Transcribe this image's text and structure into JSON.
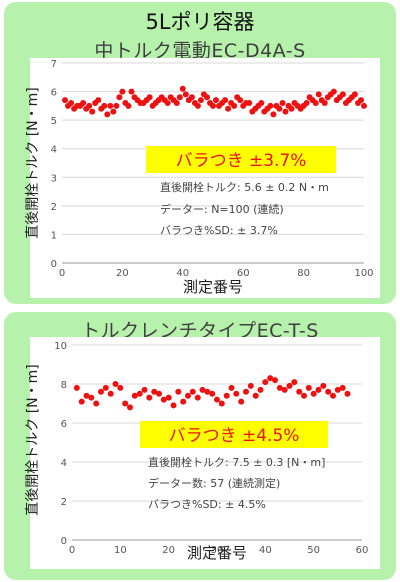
{
  "header": {
    "main_title": "5Lポリ容器"
  },
  "chart_data": [
    {
      "type": "scatter",
      "title": "中トルク電動EC-D4A-S",
      "xlabel": "測定番号",
      "ylabel": "直後開栓トルク [N・m]",
      "xlim": [
        0,
        100
      ],
      "ylim": [
        0,
        7
      ],
      "xticks": [
        0,
        20,
        40,
        60,
        80,
        100
      ],
      "yticks": [
        0,
        1,
        2,
        3,
        4,
        5,
        6,
        7
      ],
      "grid": "horizontal",
      "marker_color": "#ee1111",
      "highlight": "バラつき ±3.7%",
      "highlight_color": "#ffff00",
      "annotations": [
        "直後開栓トルク:  5.6 ± 0.2 N・m",
        "データー: N=100 (連続)",
        "バラつき%SD:  ± 3.7%"
      ],
      "x": [
        1,
        2,
        3,
        4,
        5,
        6,
        7,
        8,
        9,
        10,
        11,
        12,
        13,
        14,
        15,
        16,
        17,
        18,
        19,
        20,
        21,
        22,
        23,
        24,
        25,
        26,
        27,
        28,
        29,
        30,
        31,
        32,
        33,
        34,
        35,
        36,
        37,
        38,
        39,
        40,
        41,
        42,
        43,
        44,
        45,
        46,
        47,
        48,
        49,
        50,
        51,
        52,
        53,
        54,
        55,
        56,
        57,
        58,
        59,
        60,
        61,
        62,
        63,
        64,
        65,
        66,
        67,
        68,
        69,
        70,
        71,
        72,
        73,
        74,
        75,
        76,
        77,
        78,
        79,
        80,
        81,
        82,
        83,
        84,
        85,
        86,
        87,
        88,
        89,
        90,
        91,
        92,
        93,
        94,
        95,
        96,
        97,
        98,
        99,
        100
      ],
      "y": [
        5.7,
        5.5,
        5.6,
        5.4,
        5.5,
        5.5,
        5.6,
        5.4,
        5.5,
        5.3,
        5.6,
        5.7,
        5.4,
        5.5,
        5.2,
        5.5,
        5.3,
        5.5,
        5.8,
        6.0,
        5.6,
        5.5,
        6.0,
        5.8,
        5.7,
        5.6,
        5.6,
        5.7,
        5.8,
        5.5,
        5.6,
        5.7,
        5.8,
        5.7,
        5.6,
        5.8,
        5.7,
        5.6,
        5.8,
        6.1,
        5.9,
        5.7,
        5.8,
        5.6,
        5.5,
        5.7,
        5.9,
        5.8,
        5.6,
        5.5,
        5.7,
        5.5,
        5.6,
        5.7,
        5.4,
        5.6,
        5.5,
        5.8,
        5.7,
        5.5,
        5.6,
        5.6,
        5.3,
        5.4,
        5.5,
        5.6,
        5.3,
        5.4,
        5.5,
        5.2,
        5.5,
        5.4,
        5.6,
        5.3,
        5.5,
        5.4,
        5.6,
        5.5,
        5.4,
        5.5,
        5.6,
        5.8,
        5.7,
        5.6,
        5.9,
        5.7,
        5.6,
        5.8,
        5.9,
        6.0,
        5.7,
        5.8,
        5.9,
        5.6,
        5.7,
        5.8,
        5.9,
        5.6,
        5.7,
        5.5
      ]
    },
    {
      "type": "scatter",
      "title": "トルクレンチタイプEC-T-S",
      "xlabel": "測定番号",
      "ylabel": "直後開栓トルク [N・m]",
      "xlim": [
        0,
        60
      ],
      "ylim": [
        0,
        10
      ],
      "xticks": [
        0,
        10,
        20,
        30,
        40,
        50,
        60
      ],
      "yticks": [
        0,
        2,
        4,
        6,
        8,
        10
      ],
      "grid": "horizontal",
      "marker_color": "#ee1111",
      "highlight": "バラつき ±4.5%",
      "highlight_color": "#ffff00",
      "annotations": [
        "直後開栓トルク: 7.5 ± 0.3 [N・m]",
        "データー数:  57 (連続測定)",
        "バラつき%SD:  ± 4.5%"
      ],
      "x": [
        1,
        2,
        3,
        4,
        5,
        6,
        7,
        8,
        9,
        10,
        11,
        12,
        13,
        14,
        15,
        16,
        17,
        18,
        19,
        20,
        21,
        22,
        23,
        24,
        25,
        26,
        27,
        28,
        29,
        30,
        31,
        32,
        33,
        34,
        35,
        36,
        37,
        38,
        39,
        40,
        41,
        42,
        43,
        44,
        45,
        46,
        47,
        48,
        49,
        50,
        51,
        52,
        53,
        54,
        55,
        56,
        57
      ],
      "y": [
        7.8,
        7.1,
        7.4,
        7.3,
        7.0,
        7.6,
        7.8,
        7.5,
        8.0,
        7.8,
        7.0,
        6.8,
        7.4,
        7.5,
        7.7,
        7.3,
        7.6,
        7.5,
        7.2,
        7.3,
        6.9,
        7.6,
        7.1,
        7.4,
        7.6,
        7.3,
        7.7,
        7.6,
        7.5,
        7.2,
        7.0,
        7.4,
        7.8,
        7.5,
        7.1,
        7.6,
        7.9,
        7.4,
        7.7,
        8.1,
        8.3,
        8.2,
        7.8,
        7.7,
        7.9,
        8.1,
        7.6,
        7.4,
        7.8,
        7.5,
        7.7,
        7.9,
        7.6,
        7.4,
        7.7,
        7.8,
        7.5
      ]
    }
  ]
}
